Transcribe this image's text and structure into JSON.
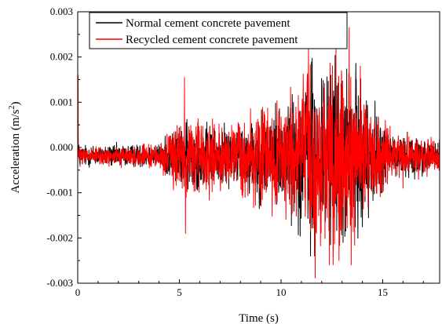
{
  "chart_data": {
    "type": "line",
    "title": "",
    "xlabel": "Time (s)",
    "ylabel_main": "Acceleration (m/s",
    "ylabel_sup": "2",
    "ylabel_tail": ")",
    "xlim": [
      0,
      17.8
    ],
    "ylim": [
      -0.003,
      0.003
    ],
    "xticks": [
      0,
      5,
      10,
      15
    ],
    "xtick_labels": [
      "0",
      "5",
      "10",
      "15"
    ],
    "yticks": [
      -0.003,
      -0.002,
      -0.001,
      0.0,
      0.001,
      0.002,
      0.003
    ],
    "ytick_labels": [
      "-0.003",
      "-0.002",
      "-0.001",
      "0.000",
      "0.001",
      "0.002",
      "0.003"
    ],
    "legend_position": "top",
    "grid": false,
    "series": [
      {
        "name": "Normal cement concrete pavement",
        "color": "#000000",
        "envelope": [
          {
            "t": 0.0,
            "a": 0.00025
          },
          {
            "t": 0.2,
            "a": 0.0002
          },
          {
            "t": 4.0,
            "a": 0.0002
          },
          {
            "t": 4.5,
            "a": 0.0004
          },
          {
            "t": 5.3,
            "a": 0.0006
          },
          {
            "t": 7.5,
            "a": 0.0005
          },
          {
            "t": 9.0,
            "a": 0.0008
          },
          {
            "t": 10.5,
            "a": 0.001
          },
          {
            "t": 11.5,
            "a": 0.0016
          },
          {
            "t": 12.8,
            "a": 0.0016
          },
          {
            "t": 13.5,
            "a": 0.0015
          },
          {
            "t": 14.5,
            "a": 0.0009
          },
          {
            "t": 15.5,
            "a": 0.0004
          },
          {
            "t": 17.8,
            "a": 0.0003
          }
        ],
        "peaks": [
          {
            "t": 11.45,
            "a": -0.0024
          },
          {
            "t": 11.65,
            "a": -0.0024
          },
          {
            "t": 12.45,
            "a": 0.0016
          },
          {
            "t": 13.05,
            "a": -0.0021
          },
          {
            "t": 13.7,
            "a": 0.0015
          }
        ]
      },
      {
        "name": "Recycled cement concrete pavement",
        "color": "#ff0000",
        "envelope": [
          {
            "t": 0.0,
            "a": 0.0002
          },
          {
            "t": 0.2,
            "a": 0.00015
          },
          {
            "t": 4.0,
            "a": 0.0002
          },
          {
            "t": 4.5,
            "a": 0.00045
          },
          {
            "t": 5.3,
            "a": 0.0007
          },
          {
            "t": 7.5,
            "a": 0.00055
          },
          {
            "t": 9.0,
            "a": 0.0009
          },
          {
            "t": 10.5,
            "a": 0.0012
          },
          {
            "t": 11.5,
            "a": 0.0017
          },
          {
            "t": 12.8,
            "a": 0.0018
          },
          {
            "t": 13.5,
            "a": 0.0016
          },
          {
            "t": 14.5,
            "a": 0.0009
          },
          {
            "t": 15.5,
            "a": 0.0004
          },
          {
            "t": 17.8,
            "a": 0.0003
          }
        ],
        "peaks": [
          {
            "t": 0.02,
            "a": 0.0016
          },
          {
            "t": 5.25,
            "a": 0.00155
          },
          {
            "t": 5.3,
            "a": -0.0019
          },
          {
            "t": 11.35,
            "a": 0.00225
          },
          {
            "t": 12.7,
            "a": 0.00225
          },
          {
            "t": 12.85,
            "a": -0.0025
          },
          {
            "t": 13.35,
            "a": 0.00265
          },
          {
            "t": 13.45,
            "a": -0.0026
          },
          {
            "t": 13.9,
            "a": 0.0018
          },
          {
            "t": 16.0,
            "a": -0.0009
          }
        ]
      }
    ]
  }
}
